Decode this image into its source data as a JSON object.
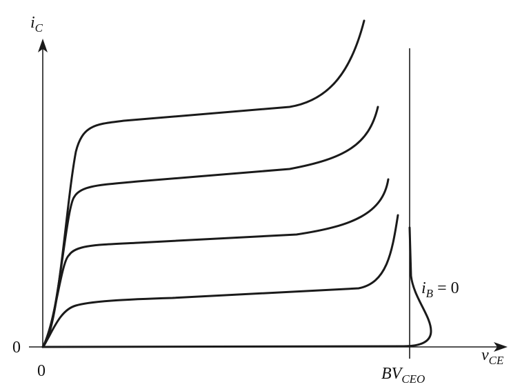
{
  "axes": {
    "y_label": {
      "main": "i",
      "sub": "C"
    },
    "x_label": {
      "main": "v",
      "sub": "CE"
    },
    "y_origin": "0",
    "x_origin": "0",
    "breakdown": {
      "main": "BV",
      "sub": "CEO"
    }
  },
  "annotation": {
    "main": "i",
    "sub": "B",
    "rest": "= 0"
  }
}
